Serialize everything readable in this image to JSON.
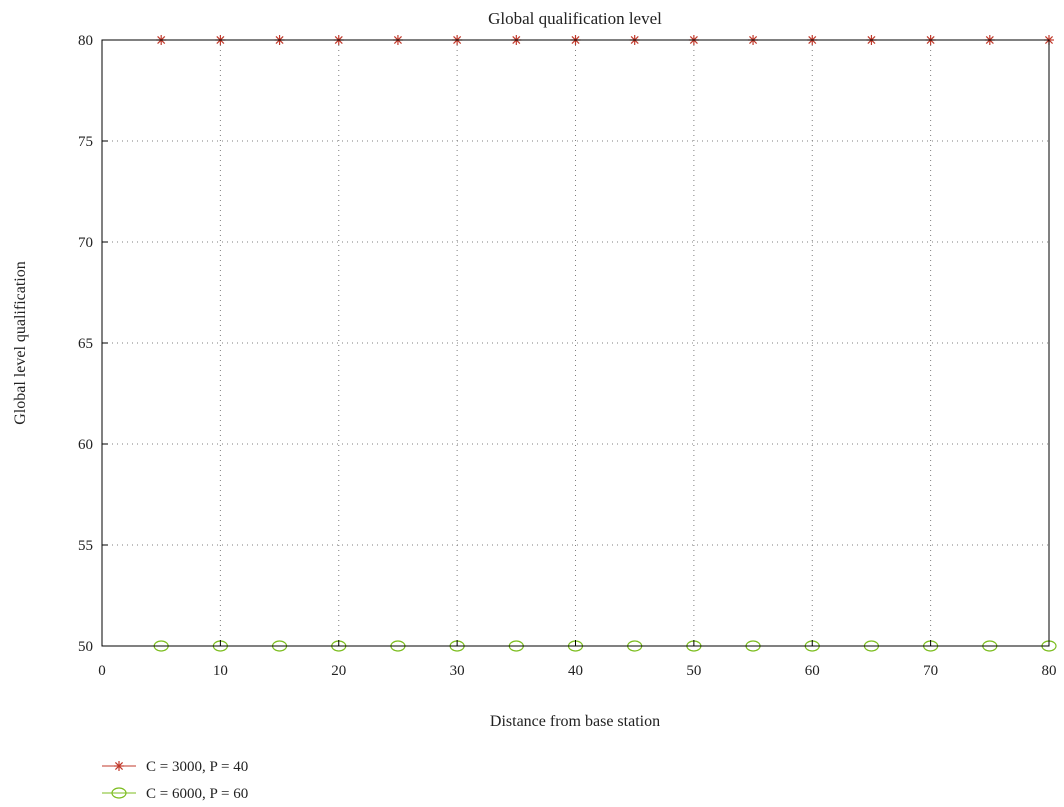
{
  "chart_data": {
    "type": "line",
    "title": "Global qualification level",
    "xlabel": "Distance from base station",
    "ylabel": "Global level qualification",
    "xlim": [
      0,
      80
    ],
    "ylim": [
      50,
      80
    ],
    "xticks": [
      0,
      10,
      20,
      30,
      40,
      50,
      60,
      70,
      80
    ],
    "yticks": [
      50,
      55,
      60,
      65,
      70,
      75,
      80
    ],
    "grid": true,
    "legend_position": "bottom-left, below plot",
    "x": [
      5,
      10,
      15,
      20,
      25,
      30,
      35,
      40,
      45,
      50,
      55,
      60,
      65,
      70,
      75,
      80
    ],
    "series": [
      {
        "name": "C = 3000, P = 40",
        "color": "#c0392b",
        "marker": "asterisk",
        "values": [
          80,
          80,
          80,
          80,
          80,
          80,
          80,
          80,
          80,
          80,
          80,
          80,
          80,
          80,
          80,
          80
        ]
      },
      {
        "name": "C = 6000, P = 60",
        "color": "#7cbd1f",
        "marker": "circle",
        "values": [
          50,
          50,
          50,
          50,
          50,
          50,
          50,
          50,
          50,
          50,
          50,
          50,
          50,
          50,
          50,
          50
        ]
      }
    ]
  }
}
